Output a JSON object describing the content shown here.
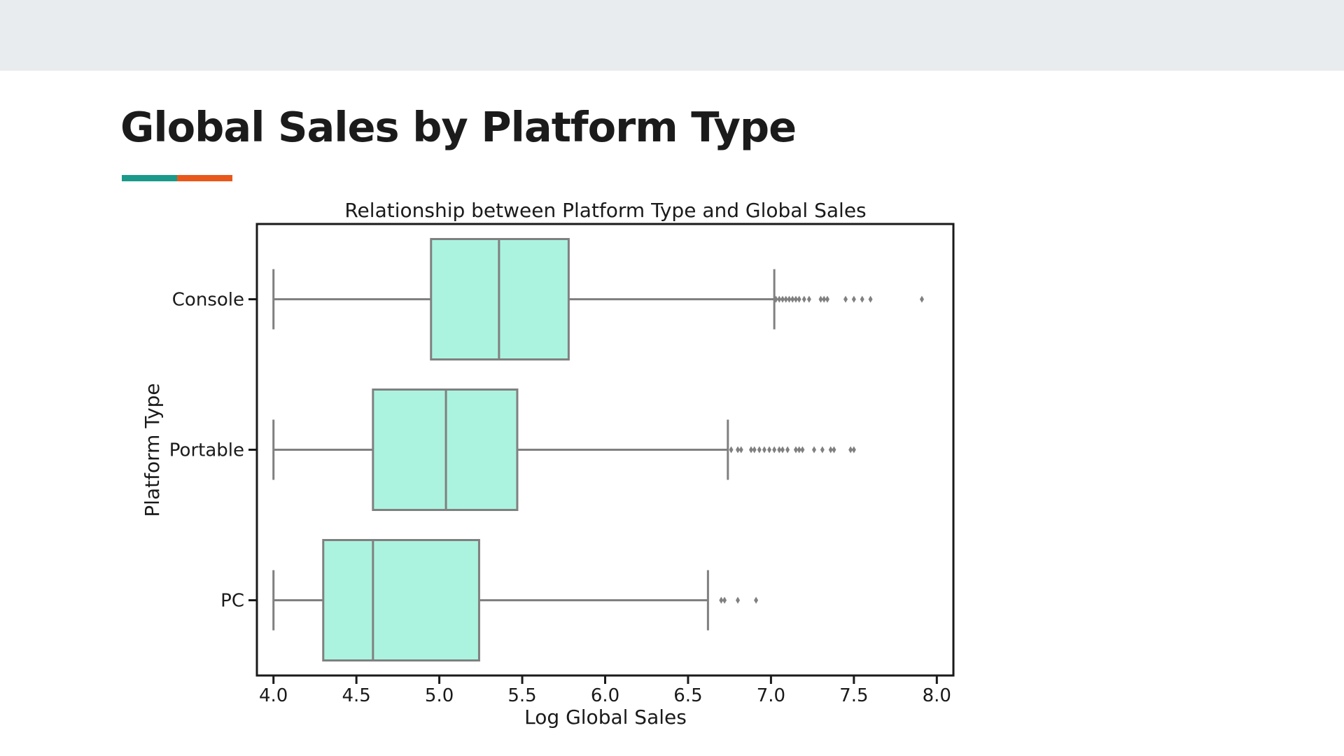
{
  "slide": {
    "title": "Global Sales by Platform Type",
    "underline_colors": [
      "#1a9a8a",
      "#e8581a"
    ],
    "header_band_color": "#e8ecee"
  },
  "chart_data": {
    "type": "box",
    "orientation": "horizontal",
    "title": "Relationship between Platform Type and Global Sales",
    "xlabel": "Log Global Sales",
    "ylabel": "Platform Type",
    "xlim": [
      3.9,
      8.1
    ],
    "xticks": [
      4.0,
      4.5,
      5.0,
      5.5,
      6.0,
      6.5,
      7.0,
      7.5,
      8.0
    ],
    "xtick_labels": [
      "4.0",
      "4.5",
      "5.0",
      "5.5",
      "6.0",
      "6.5",
      "7.0",
      "7.5",
      "8.0"
    ],
    "categories": [
      "Console",
      "Portable",
      "PC"
    ],
    "grid": false,
    "box_color": "#abf3df",
    "line_color": "#808080",
    "series": [
      {
        "category": "Console",
        "whisker_low": 4.0,
        "q1": 4.95,
        "median": 5.36,
        "q3": 5.78,
        "whisker_high": 7.02,
        "outliers": [
          7.03,
          7.05,
          7.07,
          7.09,
          7.11,
          7.13,
          7.15,
          7.17,
          7.2,
          7.23,
          7.3,
          7.32,
          7.34,
          7.45,
          7.5,
          7.55,
          7.6,
          7.91
        ]
      },
      {
        "category": "Portable",
        "whisker_low": 4.0,
        "q1": 4.6,
        "median": 5.04,
        "q3": 5.47,
        "whisker_high": 6.74,
        "outliers": [
          6.76,
          6.8,
          6.82,
          6.88,
          6.9,
          6.93,
          6.96,
          6.99,
          7.02,
          7.05,
          7.07,
          7.1,
          7.15,
          7.17,
          7.19,
          7.26,
          7.31,
          7.36,
          7.38,
          7.48,
          7.5
        ]
      },
      {
        "category": "PC",
        "whisker_low": 4.0,
        "q1": 4.3,
        "median": 4.6,
        "q3": 5.24,
        "whisker_high": 6.62,
        "outliers": [
          6.7,
          6.72,
          6.8,
          6.91
        ]
      }
    ]
  }
}
